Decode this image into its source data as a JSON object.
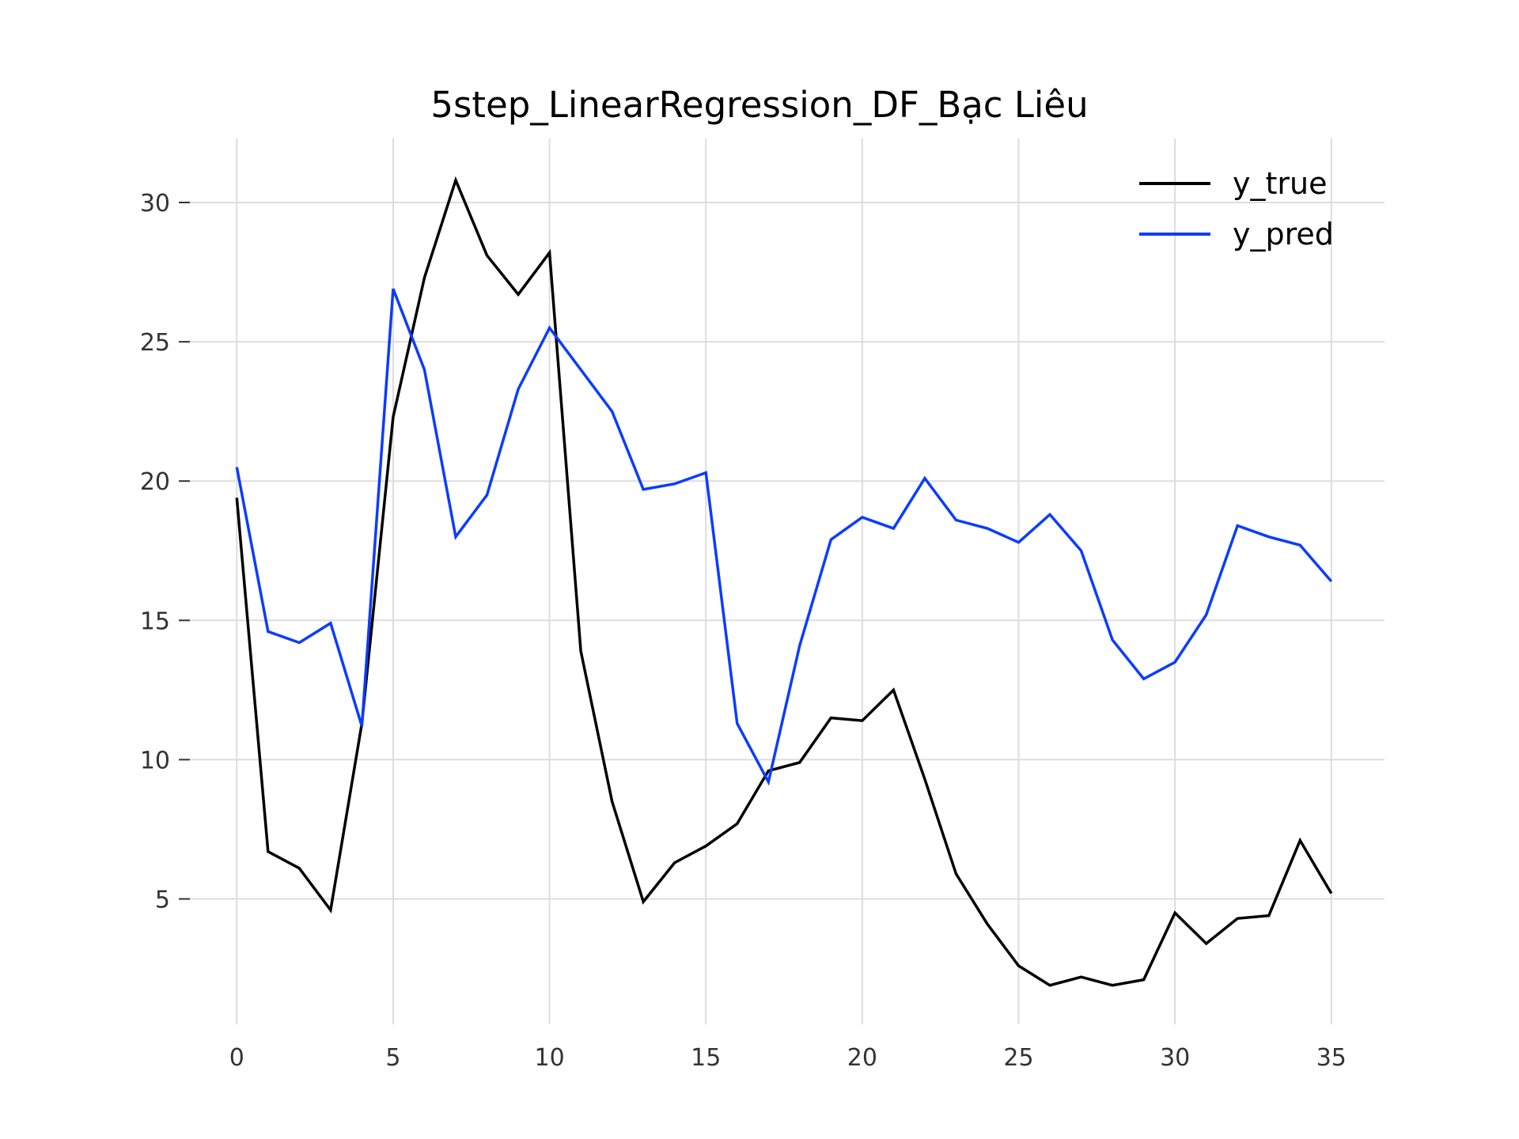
{
  "chart_data": {
    "type": "line",
    "title": "5step_LinearRegression_DF_Bạc Liêu",
    "xlabel": "",
    "ylabel": "",
    "x": [
      0,
      1,
      2,
      3,
      4,
      5,
      6,
      7,
      8,
      9,
      10,
      11,
      12,
      13,
      14,
      15,
      16,
      17,
      18,
      19,
      20,
      21,
      22,
      23,
      24,
      25,
      26,
      27,
      28,
      29,
      30,
      31,
      32,
      33,
      34,
      35
    ],
    "xlim": [
      -1.5,
      36.7
    ],
    "ylim": [
      0.5,
      32.3
    ],
    "xticks": [
      0,
      5,
      10,
      15,
      20,
      25,
      30,
      35
    ],
    "yticks": [
      5,
      10,
      15,
      20,
      25,
      30
    ],
    "grid": true,
    "legend_position": "top-right",
    "series": [
      {
        "name": "y_true",
        "color": "#000000",
        "values": [
          19.4,
          6.7,
          6.1,
          4.6,
          11.3,
          22.3,
          27.3,
          30.8,
          28.1,
          26.7,
          28.2,
          13.9,
          8.5,
          4.9,
          6.3,
          6.9,
          7.7,
          9.6,
          9.9,
          11.5,
          11.4,
          12.5,
          9.3,
          5.9,
          4.1,
          2.6,
          1.9,
          2.2,
          1.9,
          2.1,
          4.5,
          3.4,
          4.3,
          4.4,
          7.1,
          5.2
        ]
      },
      {
        "name": "y_pred",
        "color": "#0b3cff",
        "values": [
          20.5,
          14.6,
          14.2,
          14.9,
          11.2,
          26.9,
          24.0,
          18.0,
          19.5,
          23.3,
          25.5,
          24.0,
          22.5,
          19.7,
          19.9,
          20.3,
          11.3,
          9.2,
          14.1,
          17.9,
          18.7,
          18.3,
          20.1,
          18.6,
          18.3,
          17.8,
          18.8,
          17.5,
          14.3,
          12.9,
          13.5,
          15.2,
          18.4,
          18.0,
          17.7,
          16.4
        ]
      }
    ]
  }
}
